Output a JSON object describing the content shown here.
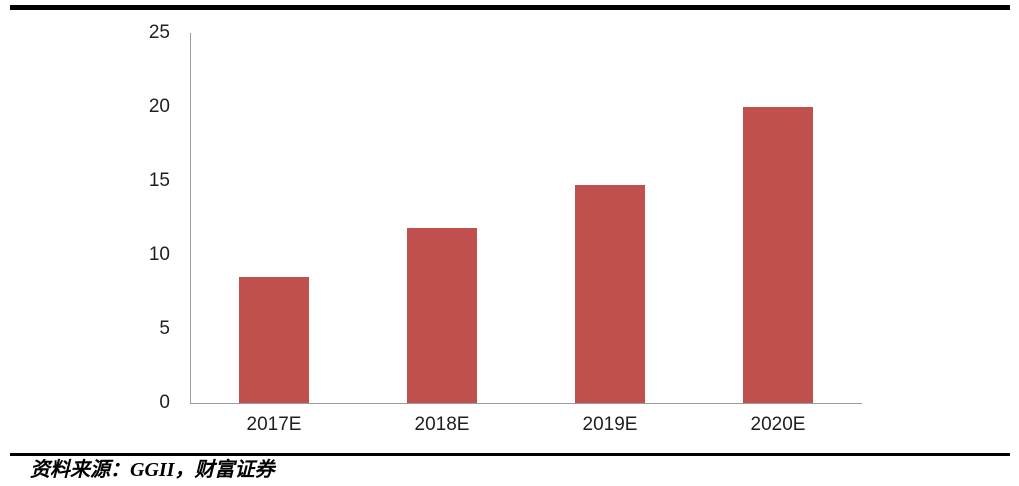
{
  "page": {
    "source_note": "资料来源：GGII，财富证券"
  },
  "chart_data": {
    "type": "bar",
    "title": "",
    "xlabel": "",
    "ylabel": "",
    "categories": [
      "2017E",
      "2018E",
      "2019E",
      "2020E"
    ],
    "values": [
      8.5,
      11.8,
      14.7,
      20.0
    ],
    "ylim": [
      0,
      25
    ],
    "yticks": [
      0,
      5,
      10,
      15,
      20,
      25
    ],
    "grid": false,
    "legend": false,
    "bar_color": "#C0504D",
    "axis_color": "#9C9C9C",
    "label_color": "#1F1F1F"
  }
}
